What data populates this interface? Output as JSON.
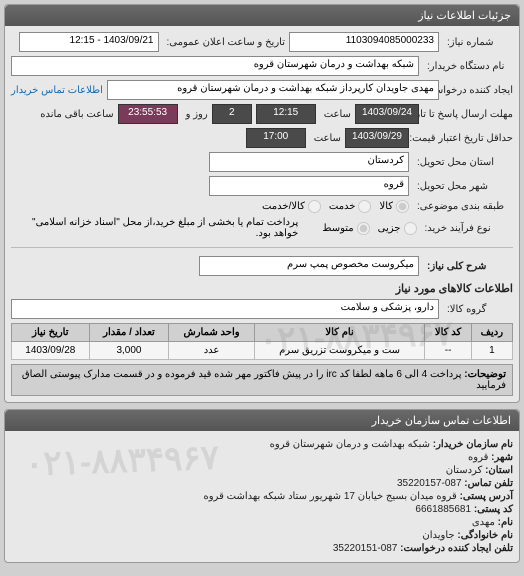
{
  "panel1": {
    "title": "جزئیات اطلاعات نیاز",
    "request_no_label": "شماره نیاز:",
    "request_no": "1103094085000233",
    "public_date_label": "تاریخ و ساعت اعلان عمومی:",
    "public_date": "1403/09/21 - 12:15",
    "buyer_org_label": "نام دستگاه خریدار:",
    "buyer_org": "شبکه بهداشت و درمان شهرستان قروه",
    "creator_label": "ایجاد کننده درخواست:",
    "creator": "مهدی جاویدان کارپرداز شبکه بهداشت و درمان شهرستان قروه",
    "contact_link": "اطلاعات تماس خریدار",
    "reply_deadline_label": "مهلت ارسال پاسخ تا تاریخ:",
    "reply_deadline_date": "1403/09/24",
    "saat_label": "ساعت",
    "reply_deadline_time": "12:15",
    "remaining_days": "2",
    "roz_label": "روز و",
    "remaining_time": "23:55:53",
    "remaining_label": "ساعت باقی مانده",
    "price_valid_label": "حداقل تاریخ اعتبار قیمت: تا تاریخ:",
    "price_valid_date": "1403/09/29",
    "price_valid_time": "17:00",
    "province_label": "استان محل تحویل:",
    "province": "کردستان",
    "city_delivery_label": "شهر محل تحویل:",
    "city_delivery": "قروه",
    "subject_class_label": "طبقه بندی موضوعی:",
    "radio_kala": "کالا",
    "radio_khedmat": "خدمت",
    "radio_kala_khedmat": "کالا/خدمت",
    "buy_process_label": "نوع فرآیند خرید:",
    "radio_jozi": "جزیی",
    "radio_motavaset": "متوسط",
    "payment_note": "پرداخت تمام یا بخشی از مبلغ خرید،از محل \"اسناد خزانه اسلامی\" خواهد بود.",
    "desc_label": "شرح کلی نیاز:",
    "desc": "میکروست مخصوص پمپ سرم"
  },
  "goods": {
    "section_title": "اطلاعات کالاهای مورد نیاز",
    "group_label": "گروه کالا:",
    "group": "دارو، پزشکی و سلامت",
    "columns": [
      "ردیف",
      "کد کالا",
      "نام کالا",
      "واحد شمارش",
      "تعداد / مقدار",
      "تاریخ نیاز"
    ],
    "rows": [
      [
        "1",
        "--",
        "ست و میکروست تزریق سرم",
        "عدد",
        "3,000",
        "1403/09/28"
      ]
    ],
    "note_label": "توضیحات:",
    "note": "پرداخت 4 الی 6 ماهه لطفا کد irc را در پیش فاکتور مهر شده قید فرموده و در قسمت مدارک پیوستی الصاق فرمایید"
  },
  "contact": {
    "title": "اطلاعات تماس سازمان خریدار",
    "org_label": "نام سازمان خریدار:",
    "org": "شبکه بهداشت و درمان شهرستان قروه",
    "city_label": "شهر:",
    "city": "قروه",
    "province_label": "استان:",
    "province": "کردستان",
    "phone_label": "تلفن تماس:",
    "phone": "087-35220157",
    "address_label": "آدرس پستی:",
    "address": "قروه میدان بسیج خیابان 17 شهریور ستاد شبکه بهداشت قروه",
    "postal_label": "کد پستی:",
    "postal": "6661885681",
    "name_label": "نام:",
    "name": "مهدی",
    "family_label": "نام خانوادگی:",
    "family": "جاویدان",
    "req_phone_label": "تلفن ایجاد کننده درخواست:",
    "req_phone": "087-35220151"
  },
  "watermark": "۰۲۱-۸۸۳۴۹۶۷"
}
